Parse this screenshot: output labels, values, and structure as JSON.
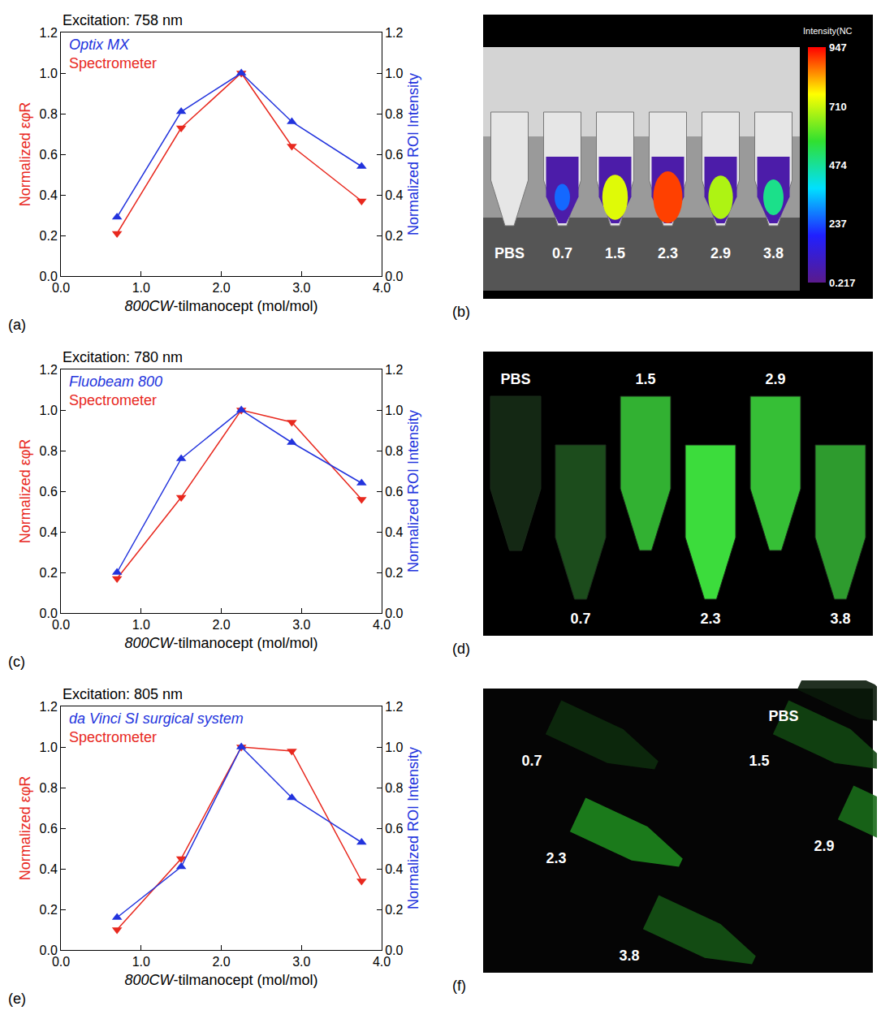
{
  "chart_data": [
    {
      "panel": "(a)",
      "type": "line",
      "title": "Excitation: 758 nm",
      "x_label": "800CW-tilmanocept (mol/mol)",
      "y_label": "Normalized εφR",
      "y2_label": "Normalized ROI Intensity",
      "x": [
        0.7,
        1.5,
        2.25,
        2.88,
        3.75
      ],
      "series": [
        {
          "name": "Optix MX",
          "color": "#2233dd",
          "marker": "triangle-up",
          "axis": "y2",
          "values": [
            0.29,
            0.81,
            1.0,
            0.76,
            0.54
          ]
        },
        {
          "name": "Spectrometer",
          "color": "#e8281e",
          "marker": "triangle-down",
          "values": [
            0.21,
            0.73,
            1.0,
            0.64,
            0.37
          ]
        }
      ],
      "xlim": [
        0,
        4
      ],
      "xticks": [
        {
          "value": 0,
          "label": "0.0"
        },
        {
          "value": 1,
          "label": "1.0"
        },
        {
          "value": 2,
          "label": "2.0"
        },
        {
          "value": 3,
          "label": "3.0"
        },
        {
          "value": 4,
          "label": "4.0"
        }
      ],
      "ylim": [
        0,
        1.2
      ],
      "yticks": [
        {
          "value": 0,
          "label": "0.0"
        },
        0.2,
        0.4,
        0.6,
        0.8,
        {
          "value": 1,
          "label": "1.0"
        },
        1.2
      ],
      "y2lim": [
        0,
        1.2
      ],
      "y2ticks": [
        {
          "value": 0,
          "label": "0.0"
        },
        0.2,
        0.4,
        0.6,
        0.8,
        {
          "value": 1,
          "label": "1.0"
        },
        1.2
      ],
      "grid": false,
      "legend": "upper left"
    },
    {
      "panel": "(c)",
      "type": "line",
      "title": "Excitation: 780 nm",
      "x_label": "800CW-tilmanocept (mol/mol)",
      "y_label": "Normalized εφR",
      "y2_label": "Normalized ROI Intensity",
      "x": [
        0.7,
        1.5,
        2.25,
        2.88,
        3.75
      ],
      "series": [
        {
          "name": "Fluobeam 800",
          "color": "#2233dd",
          "marker": "triangle-up",
          "axis": "y2",
          "values": [
            0.2,
            0.76,
            1.0,
            0.84,
            0.64
          ]
        },
        {
          "name": "Spectrometer",
          "color": "#e8281e",
          "marker": "triangle-down",
          "values": [
            0.17,
            0.57,
            1.0,
            0.94,
            0.56
          ]
        }
      ],
      "xlim": [
        0,
        4
      ],
      "xticks": [
        {
          "value": 0,
          "label": "0.0"
        },
        {
          "value": 1,
          "label": "1.0"
        },
        {
          "value": 2,
          "label": "2.0"
        },
        {
          "value": 3,
          "label": "3.0"
        },
        {
          "value": 4,
          "label": "4.0"
        }
      ],
      "ylim": [
        0,
        1.2
      ],
      "yticks": [
        {
          "value": 0,
          "label": "0.0"
        },
        0.2,
        0.4,
        0.6,
        0.8,
        {
          "value": 1,
          "label": "1.0"
        },
        1.2
      ],
      "y2lim": [
        0,
        1.2
      ],
      "y2ticks": [
        {
          "value": 0,
          "label": "0.0"
        },
        0.2,
        0.4,
        0.6,
        0.8,
        {
          "value": 1,
          "label": "1.0"
        },
        1.2
      ],
      "grid": false,
      "legend": "upper left"
    },
    {
      "panel": "(e)",
      "type": "line",
      "title": "Excitation: 805 nm",
      "x_label": "800CW-tilmanocept (mol/mol)",
      "y_label": "Normalized εφR",
      "y2_label": "Normalized ROI Intensity",
      "x": [
        0.7,
        1.5,
        2.25,
        2.88,
        3.75
      ],
      "series": [
        {
          "name": "da Vinci SI surgical system",
          "color": "#2233dd",
          "marker": "triangle-up",
          "axis": "y2",
          "values": [
            0.16,
            0.41,
            1.0,
            0.75,
            0.53
          ]
        },
        {
          "name": "Spectrometer",
          "color": "#e8281e",
          "marker": "triangle-down",
          "values": [
            0.1,
            0.45,
            1.0,
            0.98,
            0.34
          ]
        }
      ],
      "xlim": [
        0,
        4
      ],
      "xticks": [
        {
          "value": 0,
          "label": "0.0"
        },
        {
          "value": 1,
          "label": "1.0"
        },
        {
          "value": 2,
          "label": "2.0"
        },
        {
          "value": 3,
          "label": "3.0"
        },
        {
          "value": 4,
          "label": "4.0"
        }
      ],
      "ylim": [
        0,
        1.2
      ],
      "yticks": [
        {
          "value": 0,
          "label": "0.0"
        },
        0.2,
        0.4,
        0.6,
        0.8,
        {
          "value": 1,
          "label": "1.0"
        },
        1.2
      ],
      "y2lim": [
        0,
        1.2
      ],
      "y2ticks": [
        {
          "value": 0,
          "label": "0.0"
        },
        0.2,
        0.4,
        0.6,
        0.8,
        {
          "value": 1,
          "label": "1.0"
        },
        1.2
      ],
      "grid": false,
      "legend": "upper left"
    }
  ],
  "images": [
    {
      "panel": "(b)",
      "tube_labels": [
        "PBS",
        "0.7",
        "1.5",
        "2.3",
        "2.9",
        "3.8"
      ],
      "colorbar": {
        "title": "Intensity(NC",
        "range": [
          0.217,
          947
        ],
        "ticks": [
          947,
          710,
          474,
          237,
          0.217
        ]
      }
    },
    {
      "panel": "(d)",
      "tube_labels": [
        "PBS",
        "0.7",
        "1.5",
        "2.3",
        "2.9",
        "3.8"
      ]
    },
    {
      "panel": "(f)",
      "tube_labels": [
        "PBS",
        "0.7",
        "1.5",
        "2.3",
        "2.9",
        "3.8"
      ]
    }
  ]
}
